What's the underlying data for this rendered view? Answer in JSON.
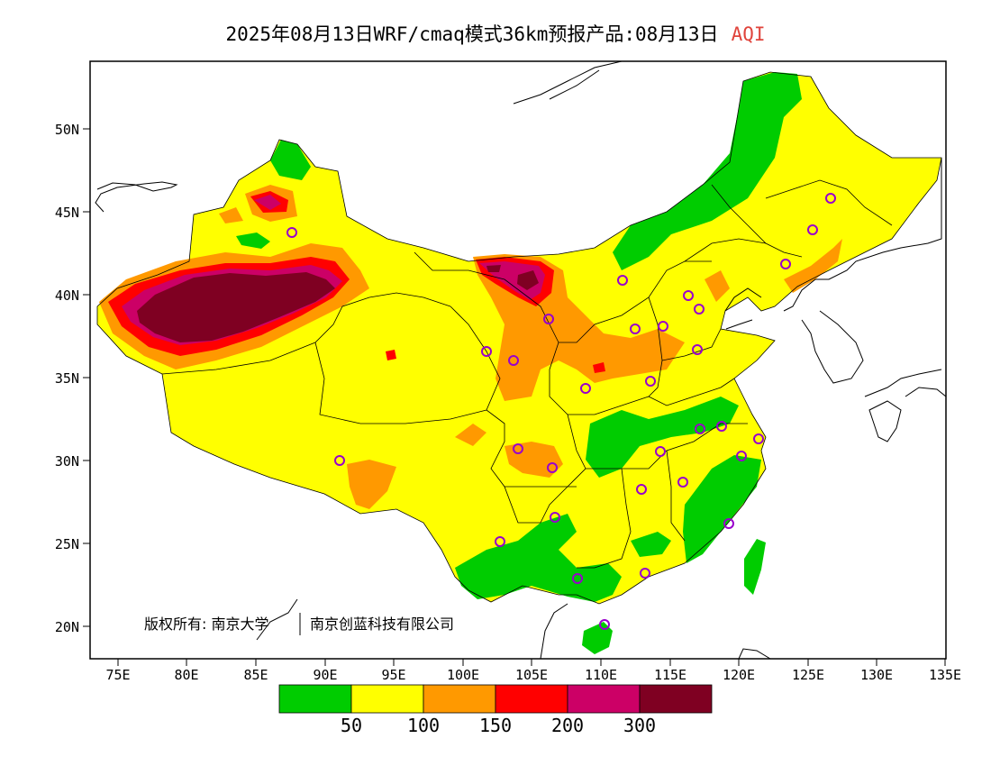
{
  "title": {
    "main": "2025年08月13日WRF/cmaq模式36km预报产品:08月13日",
    "variable": "AQI"
  },
  "lat_labels": [
    "50N",
    "45N",
    "40N",
    "35N",
    "30N",
    "25N",
    "20N"
  ],
  "lon_labels": [
    "75E",
    "80E",
    "85E",
    "90E",
    "95E",
    "100E",
    "105E",
    "110E",
    "115E",
    "120E",
    "125E",
    "130E",
    "135E"
  ],
  "credit": {
    "left": "版权所有: 南京大学",
    "right": "南京创蓝科技有限公司"
  },
  "colorbar": {
    "colors": [
      "#00cc00",
      "#ffff00",
      "#ff9900",
      "#ff0000",
      "#cc0066",
      "#7f0022"
    ],
    "labels": [
      "50",
      "100",
      "150",
      "200",
      "300"
    ]
  },
  "map": {
    "projection": "lat-lon",
    "lon_range": [
      73,
      135
    ],
    "lat_range": [
      18,
      54
    ],
    "colors": {
      "good": "#00cc00",
      "moderate": "#ffff00",
      "unhealthy_sensitive": "#ff9900",
      "unhealthy": "#ff0000",
      "very_unhealthy": "#cc0066",
      "hazardous": "#7f0022",
      "station_marker": "#9900cc"
    }
  }
}
